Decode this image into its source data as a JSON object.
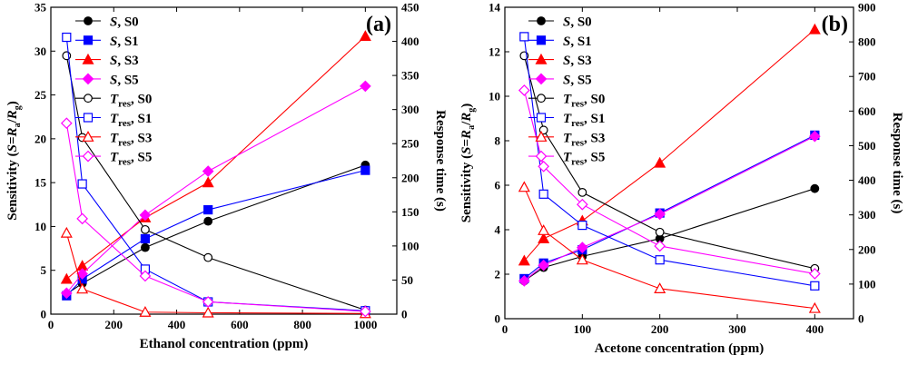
{
  "colors": {
    "S0": "#000000",
    "S1": "#0000ff",
    "S3": "#ff0000",
    "S5": "#ff00ff"
  },
  "chart_data": [
    {
      "type": "line",
      "panel_label": "(a)",
      "xlabel": "Ethanol concentration (ppm)",
      "ylabel": "Sensitivity (S=Ra/Rg)",
      "y2label": "Response time (s)",
      "xlim": [
        0,
        1100
      ],
      "ylim": [
        0,
        35
      ],
      "y2lim": [
        0,
        450
      ],
      "xticks": [
        0,
        200,
        400,
        600,
        800,
        1000
      ],
      "yticks": [
        0,
        5,
        10,
        15,
        20,
        25,
        30,
        35
      ],
      "y2ticks": [
        0,
        50,
        100,
        150,
        200,
        250,
        300,
        350,
        400,
        450
      ],
      "x": [
        50,
        100,
        300,
        500,
        1000
      ],
      "series": [
        {
          "name": "S, S0",
          "axis": "left",
          "sample": "S0",
          "marker": "circle",
          "filled": true,
          "values": [
            2.3,
            3.5,
            7.6,
            10.6,
            17.0
          ]
        },
        {
          "name": "S, S1",
          "axis": "left",
          "sample": "S1",
          "marker": "square",
          "filled": true,
          "values": [
            2.1,
            4.0,
            8.6,
            11.9,
            16.4
          ]
        },
        {
          "name": "S, S3",
          "axis": "left",
          "sample": "S3",
          "marker": "triangle",
          "filled": true,
          "values": [
            4.0,
            5.5,
            11.0,
            15.0,
            31.7
          ]
        },
        {
          "name": "S, S5",
          "axis": "left",
          "sample": "S5",
          "marker": "diamond",
          "filled": true,
          "values": [
            2.4,
            4.6,
            11.3,
            16.3,
            26.0
          ]
        },
        {
          "name": "Tres, S0",
          "axis": "right",
          "sample": "S0",
          "marker": "circle",
          "filled": false,
          "values": [
            379,
            259,
            124,
            83,
            6
          ]
        },
        {
          "name": "Tres, S1",
          "axis": "right",
          "sample": "S1",
          "marker": "square",
          "filled": false,
          "values": [
            406,
            191,
            66,
            18,
            5
          ]
        },
        {
          "name": "Tres, S3",
          "axis": "right",
          "sample": "S3",
          "marker": "triangle",
          "filled": false,
          "values": [
            119,
            37,
            3,
            2,
            1
          ]
        },
        {
          "name": "Tres, S5",
          "axis": "right",
          "sample": "S5",
          "marker": "diamond",
          "filled": false,
          "values": [
            280,
            140,
            56,
            18,
            4
          ]
        }
      ]
    },
    {
      "type": "line",
      "panel_label": "(b)",
      "xlabel": "Acetone concentration (ppm)",
      "ylabel": "Sensitivity (S=Ra/Rg)",
      "y2label": "Response time (s)",
      "xlim": [
        0,
        450
      ],
      "ylim": [
        0,
        14
      ],
      "y2lim": [
        0,
        900
      ],
      "xticks": [
        0,
        100,
        200,
        300,
        400
      ],
      "yticks": [
        0,
        2,
        4,
        6,
        8,
        10,
        12,
        14
      ],
      "y2ticks": [
        0,
        100,
        200,
        300,
        400,
        500,
        600,
        700,
        800,
        900
      ],
      "x": [
        25,
        50,
        100,
        200,
        400
      ],
      "series": [
        {
          "name": "S, S0",
          "axis": "left",
          "sample": "S0",
          "marker": "circle",
          "filled": true,
          "values": [
            1.7,
            2.3,
            2.8,
            3.6,
            5.85
          ]
        },
        {
          "name": "S, S1",
          "axis": "left",
          "sample": "S1",
          "marker": "square",
          "filled": true,
          "values": [
            1.8,
            2.5,
            3.1,
            4.75,
            8.25
          ]
        },
        {
          "name": "S, S3",
          "axis": "left",
          "sample": "S3",
          "marker": "triangle",
          "filled": true,
          "values": [
            2.6,
            3.6,
            4.4,
            7.0,
            13.0
          ]
        },
        {
          "name": "S, S5",
          "axis": "left",
          "sample": "S5",
          "marker": "diamond",
          "filled": true,
          "values": [
            1.7,
            2.4,
            3.2,
            4.7,
            8.2
          ]
        },
        {
          "name": "Tres, S0",
          "axis": "right",
          "sample": "S0",
          "marker": "circle",
          "filled": false,
          "values": [
            760,
            545,
            365,
            250,
            145
          ]
        },
        {
          "name": "Tres, S1",
          "axis": "right",
          "sample": "S1",
          "marker": "square",
          "filled": false,
          "values": [
            815,
            360,
            270,
            170,
            95
          ]
        },
        {
          "name": "Tres, S3",
          "axis": "right",
          "sample": "S3",
          "marker": "triangle",
          "filled": false,
          "values": [
            380,
            255,
            170,
            87,
            30
          ]
        },
        {
          "name": "Tres, S5",
          "axis": "right",
          "sample": "S5",
          "marker": "diamond",
          "filled": false,
          "values": [
            660,
            440,
            330,
            210,
            130
          ]
        }
      ]
    }
  ],
  "legend": [
    {
      "sym": "S",
      "sub": "",
      "label": ", S0",
      "series": "S, S0"
    },
    {
      "sym": "S",
      "sub": "",
      "label": ", S1",
      "series": "S, S1"
    },
    {
      "sym": "S",
      "sub": "",
      "label": ", S3",
      "series": "S, S3"
    },
    {
      "sym": "S",
      "sub": "",
      "label": ", S5",
      "series": "S, S5"
    },
    {
      "sym": "T",
      "sub": "res",
      "label": ", S0",
      "series": "Tres, S0"
    },
    {
      "sym": "T",
      "sub": "res",
      "label": ", S1",
      "series": "Tres, S1"
    },
    {
      "sym": "T",
      "sub": "res",
      "label": ", S3",
      "series": "Tres, S3"
    },
    {
      "sym": "T",
      "sub": "res",
      "label": ", S5",
      "series": "Tres, S5"
    }
  ],
  "ylabel_parts": {
    "pre": "Sensitivity (",
    "s": "S",
    "eq": "=",
    "r": "R",
    "a": "a",
    "slash": "/",
    "g": "g",
    "post": ")"
  }
}
